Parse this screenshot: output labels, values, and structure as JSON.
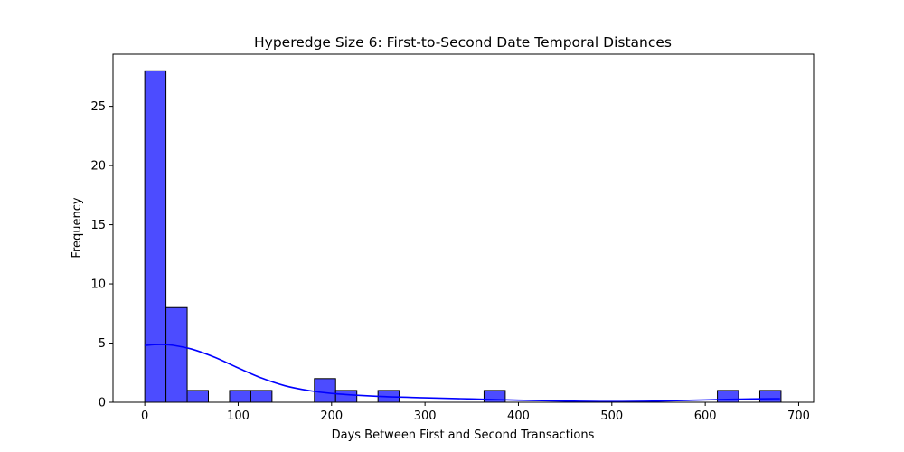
{
  "chart_data": {
    "type": "bar",
    "subtype": "histogram",
    "title": "Hyperedge Size 6: First-to-Second Date Temporal Distances",
    "xlabel": "Days Between First and Second Transactions",
    "ylabel": "Frequency",
    "xlim": [
      -34,
      716
    ],
    "ylim": [
      0,
      29.4
    ],
    "xticks": [
      0,
      100,
      200,
      300,
      400,
      500,
      600,
      700
    ],
    "yticks": [
      0,
      5,
      10,
      15,
      20,
      25
    ],
    "bin_width": 22.7,
    "bins": [
      {
        "x0": 0,
        "x1": 22.7,
        "count": 28
      },
      {
        "x0": 22.7,
        "x1": 45.4,
        "count": 8
      },
      {
        "x0": 45.4,
        "x1": 68.1,
        "count": 1
      },
      {
        "x0": 90.8,
        "x1": 113.5,
        "count": 1
      },
      {
        "x0": 113.5,
        "x1": 136.2,
        "count": 1
      },
      {
        "x0": 181.6,
        "x1": 204.3,
        "count": 2
      },
      {
        "x0": 204.3,
        "x1": 227.0,
        "count": 1
      },
      {
        "x0": 249.7,
        "x1": 272.4,
        "count": 1
      },
      {
        "x0": 363.2,
        "x1": 385.9,
        "count": 1
      },
      {
        "x0": 613.0,
        "x1": 635.7,
        "count": 1
      },
      {
        "x0": 658.4,
        "x1": 681.1,
        "count": 1
      }
    ],
    "kde": {
      "x": [
        0,
        10,
        20,
        30,
        50,
        75,
        100,
        125,
        150,
        175,
        200,
        250,
        300,
        350,
        400,
        450,
        500,
        550,
        600,
        650,
        680
      ],
      "y": [
        4.8,
        4.87,
        4.88,
        4.82,
        4.5,
        3.8,
        2.9,
        2.05,
        1.4,
        1.0,
        0.75,
        0.5,
        0.38,
        0.28,
        0.18,
        0.1,
        0.06,
        0.1,
        0.2,
        0.28,
        0.3
      ]
    },
    "grid": false,
    "legend": "none",
    "colors": {
      "bar_fill": "#4c4cff",
      "bar_edge": "#000000",
      "kde_line": "#0000ff"
    }
  }
}
